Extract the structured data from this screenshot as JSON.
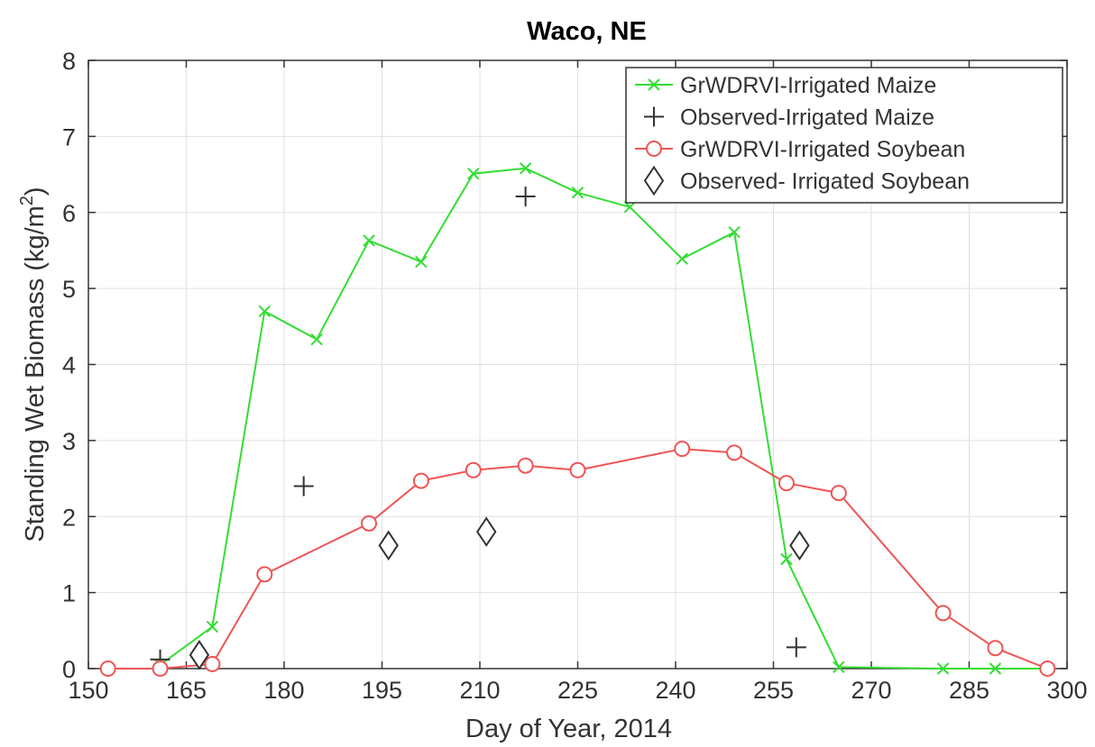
{
  "chart_data": {
    "type": "line",
    "title": "Waco, NE",
    "xlabel": "Day of Year, 2014",
    "ylabel_main": "Standing Wet Biomass (kg/m",
    "ylabel_sup": "2",
    "ylabel_tail": ")",
    "xlim": [
      150,
      300
    ],
    "ylim": [
      0,
      8
    ],
    "xticks": [
      150,
      165,
      180,
      195,
      210,
      225,
      240,
      255,
      270,
      285,
      300
    ],
    "yticks": [
      0,
      1,
      2,
      3,
      4,
      5,
      6,
      7,
      8
    ],
    "grid": true,
    "legend_position": "top-right",
    "series": [
      {
        "name": "GrWDRVI-Irrigated Maize",
        "color": "#33dd33",
        "marker": "x",
        "line": true,
        "x": [
          161,
          169,
          177,
          185,
          193,
          201,
          209,
          217,
          225,
          233,
          241,
          249,
          257,
          265,
          281,
          289,
          297
        ],
        "y": [
          0.05,
          0.55,
          4.7,
          4.33,
          5.63,
          5.35,
          6.51,
          6.58,
          6.26,
          6.07,
          5.39,
          5.74,
          1.44,
          0.02,
          0.0,
          0.0,
          0.0
        ]
      },
      {
        "name": "Observed-Irrigated Maize",
        "color": "#333333",
        "marker": "+",
        "line": false,
        "x": [
          161,
          183,
          217,
          258.5
        ],
        "y": [
          0.12,
          2.4,
          6.21,
          0.28
        ]
      },
      {
        "name": "GrWDRVI-Irrigated Soybean",
        "color": "#ee5555",
        "marker": "o",
        "line": true,
        "x": [
          153,
          161,
          169,
          177,
          193,
          201,
          209,
          217,
          225,
          241,
          249,
          257,
          265,
          281,
          289,
          297
        ],
        "y": [
          0.0,
          0.0,
          0.06,
          1.24,
          1.91,
          2.47,
          2.61,
          2.67,
          2.61,
          2.89,
          2.84,
          2.44,
          2.31,
          0.73,
          0.27,
          0.0
        ]
      },
      {
        "name": "Observed- Irrigated Soybean",
        "color": "#333333",
        "marker": "diamond",
        "line": false,
        "x": [
          167,
          196,
          211,
          259
        ],
        "y": [
          0.18,
          1.62,
          1.8,
          1.62
        ]
      }
    ]
  }
}
